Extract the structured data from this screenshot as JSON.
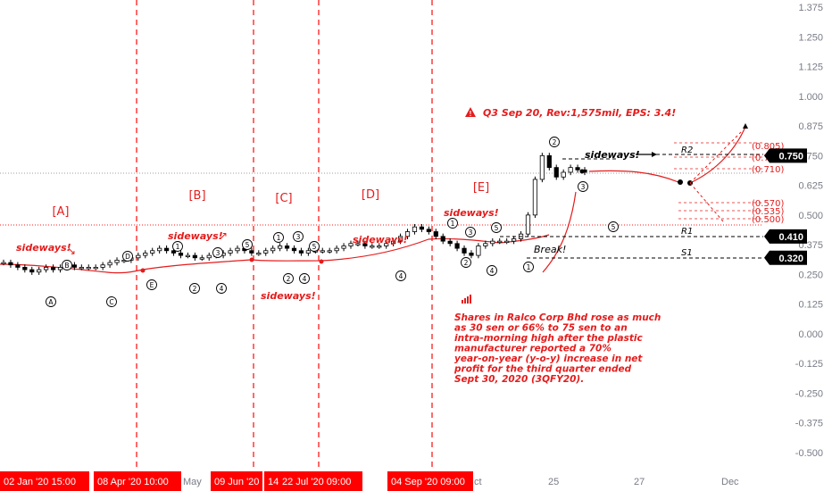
{
  "chart_data": {
    "type": "candlestick",
    "y_axis": {
      "position": "right",
      "ticks": [
        "1.375",
        "1.250",
        "1.125",
        "1.000",
        "0.875",
        "0.750",
        "0.625",
        "0.500",
        "0.375",
        "0.250",
        "0.125",
        "0.000",
        "-0.125",
        "-0.250",
        "-0.375",
        "-0.500"
      ],
      "tick_values": [
        1.375,
        1.25,
        1.125,
        1.0,
        0.875,
        0.75,
        0.625,
        0.5,
        0.375,
        0.25,
        0.125,
        0.0,
        -0.125,
        -0.25,
        -0.375,
        -0.5
      ]
    },
    "price_labels": [
      {
        "text": "0.750",
        "value": 0.75
      },
      {
        "text": "0.410",
        "value": 0.41
      },
      {
        "text": "0.320",
        "value": 0.32
      }
    ],
    "x_axis": {
      "date_flags": [
        "02 Jan '20   15:00",
        "08 Apr '20   10:00",
        "09 Jun '20",
        "14",
        "22 Jul '20   09:00",
        "04 Sep '20   09:00"
      ],
      "plain_ticks": [
        "May",
        "ct",
        "25",
        "27",
        "Dec"
      ]
    },
    "phases": [
      "[A]",
      "[B]",
      "[C]",
      "[D]",
      "[E]"
    ],
    "levels": [
      {
        "name": "R2",
        "value": 0.75
      },
      {
        "name": "R1",
        "value": 0.41
      },
      {
        "name": "S1",
        "value": 0.32
      }
    ],
    "fib_labels": [
      "(0.805)",
      "(0.755)",
      "(0.710)",
      "(0.570)",
      "(0.535)",
      "(0.500)"
    ],
    "annotations": {
      "sideways_phase": "sideways!",
      "sideways_mid": "sideways!",
      "sideways_top": "sideways!",
      "break": "Break!",
      "earnings": "Q3 Sep 20, Rev:1,575mil, EPS: 3.4!",
      "news": "Shares in Ralco Corp Bhd rose as much as 30 sen or 66% to 75 sen to an intra-morning high after the plastic manufacturer reported a 70% year-on-year (y-o-y) increase in net profit for the third quarter ended Sept 30, 2020 (3QFY20)."
    },
    "wave_labels": [
      "A",
      "B",
      "C",
      "D",
      "E",
      "1",
      "2",
      "3",
      "4",
      "5"
    ],
    "candles_close": [
      0.3,
      0.29,
      0.28,
      0.27,
      0.26,
      0.27,
      0.28,
      0.27,
      0.28,
      0.29,
      0.28,
      0.28,
      0.28,
      0.28,
      0.29,
      0.3,
      0.31,
      0.31,
      0.32,
      0.33,
      0.34,
      0.35,
      0.36,
      0.35,
      0.34,
      0.33,
      0.33,
      0.32,
      0.32,
      0.33,
      0.33,
      0.34,
      0.35,
      0.36,
      0.35,
      0.34,
      0.34,
      0.35,
      0.36,
      0.37,
      0.36,
      0.35,
      0.34,
      0.35,
      0.35,
      0.35,
      0.35,
      0.36,
      0.37,
      0.38,
      0.38,
      0.37,
      0.37,
      0.37,
      0.38,
      0.39,
      0.41,
      0.43,
      0.45,
      0.44,
      0.43,
      0.41,
      0.39,
      0.38,
      0.36,
      0.34,
      0.33,
      0.37,
      0.38,
      0.39,
      0.39,
      0.39,
      0.4,
      0.42,
      0.5,
      0.65,
      0.75,
      0.7,
      0.66,
      0.68,
      0.7,
      0.69,
      0.68
    ],
    "colors": {
      "candle": "#000000",
      "wick": "#000000",
      "grid_dash": "#ff1a1a",
      "label_bg": "#ff0000",
      "curve": "#e51c1c",
      "price_tag_bg": "#000000"
    }
  }
}
